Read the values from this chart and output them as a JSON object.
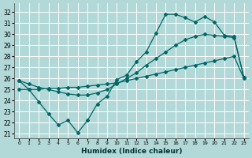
{
  "xlabel": "Humidex (Indice chaleur)",
  "bg_color": "#b2d8d8",
  "grid_color": "#c8e8e8",
  "line_color": "#006666",
  "xlim": [
    -0.5,
    23.5
  ],
  "ylim": [
    20.6,
    32.8
  ],
  "xticks": [
    0,
    1,
    2,
    3,
    4,
    5,
    6,
    7,
    8,
    9,
    10,
    11,
    12,
    13,
    14,
    15,
    16,
    17,
    18,
    19,
    20,
    21,
    22,
    23
  ],
  "yticks": [
    21,
    22,
    23,
    24,
    25,
    26,
    27,
    28,
    29,
    30,
    31,
    32
  ],
  "line1_x": [
    0,
    1,
    2,
    3,
    4,
    5,
    6,
    7,
    8,
    9,
    10,
    11,
    12,
    13,
    14,
    15,
    16,
    17,
    18,
    19,
    20,
    21,
    22,
    23
  ],
  "line1_y": [
    25.8,
    25.0,
    23.9,
    22.8,
    21.8,
    22.2,
    21.1,
    22.2,
    23.7,
    24.4,
    25.9,
    26.3,
    27.5,
    28.4,
    30.1,
    31.8,
    31.8,
    31.5,
    31.1,
    31.6,
    31.1,
    29.9,
    29.8,
    26.1
  ],
  "line2_x": [
    0,
    1,
    2,
    3,
    4,
    5,
    6,
    7,
    8,
    9,
    10,
    11,
    12,
    13,
    14,
    15,
    16,
    17,
    18,
    19,
    20,
    21,
    22,
    23
  ],
  "line2_y": [
    25.8,
    25.5,
    25.2,
    25.0,
    24.8,
    24.6,
    24.5,
    24.5,
    24.7,
    25.0,
    25.5,
    26.0,
    26.5,
    27.2,
    27.8,
    28.4,
    29.0,
    29.5,
    29.8,
    30.0,
    29.9,
    29.8,
    29.7,
    26.1
  ],
  "line3_x": [
    0,
    1,
    2,
    3,
    4,
    5,
    6,
    7,
    8,
    9,
    10,
    11,
    12,
    13,
    14,
    15,
    16,
    17,
    18,
    19,
    20,
    21,
    22,
    23
  ],
  "line3_y": [
    25.0,
    25.0,
    25.0,
    25.1,
    25.1,
    25.2,
    25.2,
    25.3,
    25.4,
    25.5,
    25.6,
    25.8,
    26.0,
    26.2,
    26.4,
    26.6,
    26.8,
    27.0,
    27.2,
    27.4,
    27.6,
    27.8,
    28.0,
    26.0
  ]
}
